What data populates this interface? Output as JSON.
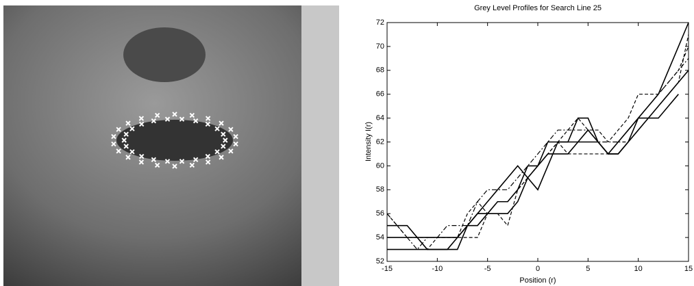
{
  "chart_data": {
    "type": "line",
    "title": "Grey Level Profiles for Search Line 25",
    "x_label": "Position (r)",
    "y_label": "Intensity I(r)",
    "x": [
      -15,
      -14,
      -13,
      -12,
      -11,
      -10,
      -9,
      -8,
      -7,
      -6,
      -5,
      -4,
      -3,
      -2,
      -1,
      0,
      1,
      2,
      3,
      4,
      5,
      6,
      7,
      8,
      9,
      10,
      11,
      12,
      13,
      14,
      15
    ],
    "xlim": [
      -15,
      15
    ],
    "xticks": [
      -15,
      -10,
      -5,
      0,
      5,
      10,
      15
    ],
    "ylim": [
      52,
      72
    ],
    "yticks": [
      52,
      54,
      56,
      58,
      60,
      62,
      64,
      66,
      68,
      70,
      72
    ],
    "series": [
      {
        "color": "#000000",
        "dash": "solid",
        "values": [
          55,
          55,
          55,
          54,
          53,
          53,
          53,
          54,
          55,
          56,
          57,
          58,
          59,
          60,
          59,
          58,
          60,
          62,
          62,
          62,
          63,
          62,
          61,
          61,
          62,
          64,
          65,
          66,
          68,
          70,
          72
        ]
      },
      {
        "color": "#000000",
        "dash": "solid",
        "values": [
          53,
          53,
          53,
          53,
          53,
          53,
          53,
          53,
          55,
          56,
          56,
          56,
          56,
          57,
          59,
          60,
          62,
          62,
          62,
          64,
          64,
          62,
          61,
          61,
          62,
          63,
          64,
          65,
          66,
          67,
          68
        ]
      },
      {
        "color": "#000000",
        "dash": "solid",
        "values": [
          54,
          54,
          54,
          54,
          54,
          54,
          54,
          54,
          55,
          55,
          56,
          57,
          57,
          58,
          60,
          60,
          61,
          61,
          61,
          62,
          62,
          62,
          61,
          62,
          63,
          64,
          64,
          64,
          65,
          66,
          null
        ]
      },
      {
        "color": "#000000",
        "dash": "dashdot",
        "values": [
          56,
          55,
          54,
          53,
          54,
          54,
          55,
          55,
          55,
          57,
          58,
          58,
          58,
          59,
          60,
          61,
          62,
          63,
          63,
          63,
          63,
          62,
          62,
          62,
          63,
          64,
          65,
          66,
          67,
          68,
          69
        ]
      },
      {
        "color": "#000000",
        "dash": "dashed",
        "values": [
          56,
          55,
          54,
          54,
          54,
          54,
          54,
          54,
          56,
          57,
          56,
          56,
          55,
          58,
          59,
          60,
          61,
          62,
          63,
          64,
          63,
          63,
          62,
          63,
          64,
          66,
          66,
          66,
          67,
          68,
          70
        ]
      },
      {
        "color": "#000000",
        "dash": "dashed",
        "values": [
          55,
          55,
          55,
          54,
          53,
          54,
          54,
          54,
          54,
          54,
          56,
          57,
          57,
          58,
          59,
          60,
          61,
          62,
          61,
          61,
          61,
          61,
          61,
          62,
          62,
          63,
          64,
          65,
          66,
          67,
          71
        ]
      }
    ]
  }
}
